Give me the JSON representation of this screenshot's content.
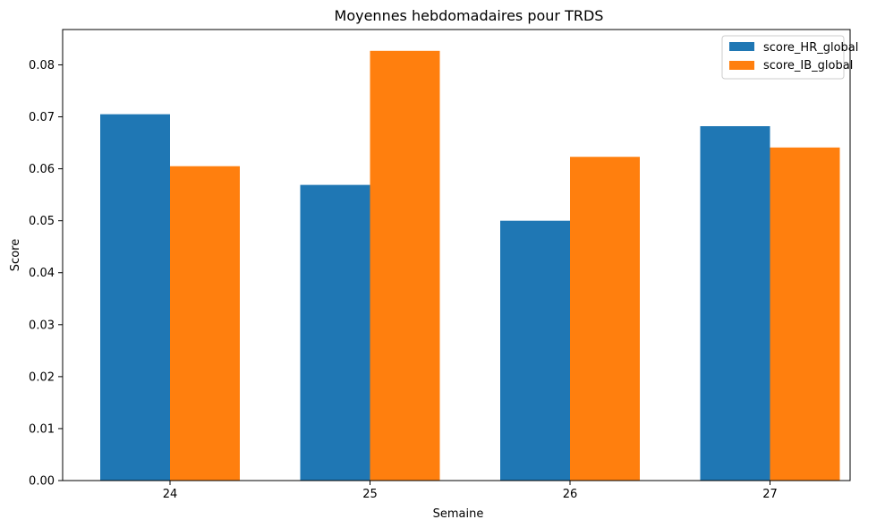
{
  "chart_data": {
    "type": "bar",
    "title": "Moyennes hebdomadaires pour TRDS",
    "xlabel": "Semaine",
    "ylabel": "Score",
    "categories": [
      "24",
      "25",
      "26",
      "27"
    ],
    "series": [
      {
        "name": "score_HR_global",
        "color": "#1f77b4",
        "values": [
          0.0705,
          0.0569,
          0.05,
          0.0682
        ]
      },
      {
        "name": "score_IB_global",
        "color": "#ff7f0e",
        "values": [
          0.0605,
          0.0827,
          0.0623,
          0.0641
        ]
      }
    ],
    "ylim": [
      0,
      0.0868
    ],
    "yticks": [
      0.0,
      0.01,
      0.02,
      0.03,
      0.04,
      0.05,
      0.06,
      0.07,
      0.08
    ],
    "ytick_labels": [
      "0.00",
      "0.01",
      "0.02",
      "0.03",
      "0.04",
      "0.05",
      "0.06",
      "0.07",
      "0.08"
    ],
    "grid": false,
    "legend_position": "top-right"
  }
}
